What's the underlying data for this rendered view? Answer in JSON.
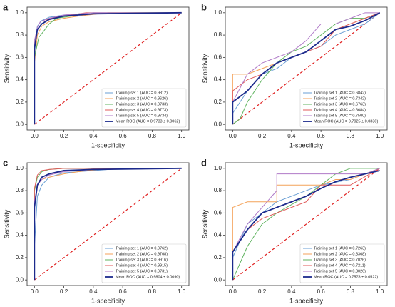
{
  "chart_data": [
    {
      "type": "line",
      "label": "a",
      "xlabel": "1-specificity",
      "ylabel": "Sensitivity",
      "xlim": [
        -0.05,
        1.05
      ],
      "ylim": [
        -0.05,
        1.05
      ],
      "xticks": [
        {
          "value": 0,
          "label": "0.0"
        },
        {
          "value": 0.2,
          "label": "0.2"
        },
        {
          "value": 0.4,
          "label": "0.4"
        },
        {
          "value": 0.6,
          "label": "0.6"
        },
        {
          "value": 0.8,
          "label": "0.8"
        },
        {
          "value": 1,
          "label": "1.0"
        }
      ],
      "yticks": [
        {
          "value": 0,
          "label": "0.0"
        },
        {
          "value": 0.2,
          "label": "0.2"
        },
        {
          "value": 0.4,
          "label": "0.4"
        },
        {
          "value": 0.6,
          "label": "0.6"
        },
        {
          "value": 0.8,
          "label": "0.8"
        },
        {
          "value": 1,
          "label": "1.0"
        }
      ],
      "series": [
        {
          "name": "Training set 1 (AUC = 0.9812)",
          "color": "#6a9fd4",
          "x": [
            0,
            0,
            0.01,
            0.02,
            0.05,
            0.1,
            0.2,
            0.4,
            1
          ],
          "values": [
            0,
            0.6,
            0.8,
            0.88,
            0.93,
            0.96,
            0.98,
            1,
            1
          ]
        },
        {
          "name": "Training set 2 (AUC = 0.9626)",
          "color": "#f4a259",
          "x": [
            0,
            0,
            0.02,
            0.05,
            0.1,
            0.2,
            0.3,
            0.5,
            1
          ],
          "values": [
            0,
            0.55,
            0.8,
            0.88,
            0.92,
            0.95,
            0.97,
            1,
            1
          ]
        },
        {
          "name": "Training set 3 (AUC = 0.9733)",
          "color": "#5fb35f",
          "x": [
            0,
            0,
            0.03,
            0.06,
            0.1,
            0.15,
            0.3,
            0.5,
            1
          ],
          "values": [
            0,
            0.6,
            0.78,
            0.83,
            0.9,
            0.95,
            0.98,
            1,
            1
          ]
        },
        {
          "name": "Training set 4 (AUC = 0.9773)",
          "color": "#e05a5a",
          "x": [
            0,
            0,
            0.02,
            0.05,
            0.1,
            0.2,
            0.35,
            1
          ],
          "values": [
            0,
            0.7,
            0.85,
            0.9,
            0.95,
            0.97,
            1,
            1
          ]
        },
        {
          "name": "Training set 5 (AUC = 0.9734)",
          "color": "#b07ac8",
          "x": [
            0,
            0,
            0.02,
            0.04,
            0.1,
            0.2,
            0.4,
            1
          ],
          "values": [
            0,
            0.75,
            0.87,
            0.92,
            0.95,
            0.98,
            1,
            1
          ]
        },
        {
          "name": "Mean ROC (AUC = 0.9733 ± 0.0062)",
          "color": "#1c2a8c",
          "x": [
            0,
            0,
            0.02,
            0.05,
            0.1,
            0.2,
            0.4,
            1
          ],
          "values": [
            0,
            0.68,
            0.85,
            0.9,
            0.94,
            0.97,
            0.99,
            1
          ]
        }
      ]
    },
    {
      "type": "line",
      "label": "b",
      "xlabel": "1-specificity",
      "ylabel": "Sensitivity",
      "xlim": [
        -0.05,
        1.05
      ],
      "ylim": [
        -0.05,
        1.05
      ],
      "xticks": [
        {
          "value": 0,
          "label": "0.0"
        },
        {
          "value": 0.2,
          "label": "0.2"
        },
        {
          "value": 0.4,
          "label": "0.4"
        },
        {
          "value": 0.6,
          "label": "0.6"
        },
        {
          "value": 0.8,
          "label": "0.8"
        },
        {
          "value": 1,
          "label": "1.0"
        }
      ],
      "yticks": [
        {
          "value": 0,
          "label": "0.0"
        },
        {
          "value": 0.2,
          "label": "0.2"
        },
        {
          "value": 0.4,
          "label": "0.4"
        },
        {
          "value": 0.6,
          "label": "0.6"
        },
        {
          "value": 0.8,
          "label": "0.8"
        },
        {
          "value": 1,
          "label": "1.0"
        }
      ],
      "series": [
        {
          "name": "Training set 1 (AUC = 0.6842)",
          "color": "#6a9fd4",
          "x": [
            0,
            0,
            0.05,
            0.1,
            0.2,
            0.3,
            0.4,
            0.5,
            0.6,
            0.7,
            0.8,
            0.9,
            1
          ],
          "values": [
            0,
            0.1,
            0.2,
            0.3,
            0.45,
            0.5,
            0.6,
            0.65,
            0.7,
            0.8,
            0.85,
            0.9,
            1
          ]
        },
        {
          "name": "Training set 2 (AUC = 0.7342)",
          "color": "#f4a259",
          "x": [
            0,
            0,
            0.1,
            0.2,
            0.3,
            0.4,
            0.5,
            0.6,
            0.7,
            0.8,
            0.9,
            1
          ],
          "values": [
            0,
            0.45,
            0.45,
            0.5,
            0.55,
            0.6,
            0.65,
            0.75,
            0.85,
            0.9,
            0.95,
            1
          ]
        },
        {
          "name": "Training set 3 (AUC = 0.6763)",
          "color": "#5fb35f",
          "x": [
            0,
            0.05,
            0.1,
            0.2,
            0.3,
            0.4,
            0.5,
            0.6,
            0.7,
            0.8,
            0.9,
            1
          ],
          "values": [
            0,
            0.05,
            0.2,
            0.4,
            0.55,
            0.65,
            0.7,
            0.8,
            0.9,
            0.95,
            0.95,
            1
          ]
        },
        {
          "name": "Training set 4 (AUC = 0.6684)",
          "color": "#e05a5a",
          "x": [
            0,
            0,
            0.1,
            0.2,
            0.3,
            0.4,
            0.5,
            0.6,
            0.7,
            0.8,
            0.9,
            1
          ],
          "values": [
            0,
            0.3,
            0.4,
            0.45,
            0.55,
            0.6,
            0.65,
            0.7,
            0.85,
            0.9,
            0.95,
            1
          ]
        },
        {
          "name": "Training set 5 (AUC = 0.7500)",
          "color": "#b07ac8",
          "x": [
            0,
            0,
            0.1,
            0.2,
            0.3,
            0.4,
            0.5,
            0.6,
            0.7,
            0.8,
            0.9,
            1
          ],
          "values": [
            0,
            0.2,
            0.45,
            0.55,
            0.6,
            0.65,
            0.75,
            0.9,
            0.9,
            0.95,
            1,
            1
          ]
        },
        {
          "name": "Mean ROC (AUC = 0.7025 ± 0.0330)",
          "color": "#1c2a8c",
          "x": [
            0,
            0,
            0.1,
            0.2,
            0.3,
            0.4,
            0.5,
            0.6,
            0.7,
            0.8,
            0.9,
            1
          ],
          "values": [
            0,
            0.2,
            0.3,
            0.45,
            0.55,
            0.6,
            0.65,
            0.75,
            0.85,
            0.88,
            0.93,
            1
          ]
        }
      ]
    },
    {
      "type": "line",
      "label": "c",
      "xlabel": "1-specificity",
      "ylabel": "Sensitivity",
      "xlim": [
        -0.05,
        1.05
      ],
      "ylim": [
        -0.05,
        1.05
      ],
      "xticks": [
        {
          "value": 0,
          "label": "0.0"
        },
        {
          "value": 0.2,
          "label": "0.2"
        },
        {
          "value": 0.4,
          "label": "0.4"
        },
        {
          "value": 0.6,
          "label": "0.6"
        },
        {
          "value": 0.8,
          "label": "0.8"
        },
        {
          "value": 1,
          "label": "1.0"
        }
      ],
      "yticks": [
        {
          "value": 0,
          "label": "0.0"
        },
        {
          "value": 0.2,
          "label": "0.2"
        },
        {
          "value": 0.4,
          "label": "0.4"
        },
        {
          "value": 0.6,
          "label": "0.6"
        },
        {
          "value": 0.8,
          "label": "0.8"
        },
        {
          "value": 1,
          "label": "1.0"
        }
      ],
      "series": [
        {
          "name": "Training set 1 (AUC = 0.9762)",
          "color": "#6a9fd4",
          "x": [
            0,
            0,
            0.02,
            0.05,
            0.1,
            0.2,
            0.4,
            0.6,
            1
          ],
          "values": [
            0,
            0.3,
            0.75,
            0.85,
            0.92,
            0.96,
            0.98,
            1,
            1
          ]
        },
        {
          "name": "Training set 2 (AUC = 0.9708)",
          "color": "#f4a259",
          "x": [
            0,
            0,
            0.02,
            0.05,
            0.1,
            0.2,
            0.3,
            0.5,
            1
          ],
          "values": [
            0,
            0.65,
            0.85,
            0.9,
            0.92,
            0.95,
            0.97,
            1,
            1
          ]
        },
        {
          "name": "Training set 3 (AUC = 0.9916)",
          "color": "#5fb35f",
          "x": [
            0,
            0,
            0.02,
            0.05,
            0.1,
            0.2,
            1
          ],
          "values": [
            0,
            0.8,
            0.92,
            0.97,
            0.99,
            1,
            1
          ]
        },
        {
          "name": "Training set 4 (AUC = 0.9915)",
          "color": "#e05a5a",
          "x": [
            0,
            0,
            0.02,
            0.05,
            0.1,
            0.2,
            1
          ],
          "values": [
            0,
            0.82,
            0.94,
            0.98,
            0.99,
            1,
            1
          ]
        },
        {
          "name": "Training set 5 (AUC = 0.9731)",
          "color": "#b07ac8",
          "x": [
            0,
            0,
            0.02,
            0.05,
            0.1,
            0.2,
            0.4,
            1
          ],
          "values": [
            0,
            0.7,
            0.85,
            0.9,
            0.94,
            0.97,
            0.99,
            1
          ]
        },
        {
          "name": "Mean ROC (AUC = 0.9804 ± 0.0090)",
          "color": "#1c2a8c",
          "x": [
            0,
            0,
            0.02,
            0.05,
            0.1,
            0.2,
            0.4,
            1
          ],
          "values": [
            0,
            0.65,
            0.85,
            0.92,
            0.95,
            0.98,
            0.99,
            1
          ]
        }
      ]
    },
    {
      "type": "line",
      "label": "d",
      "xlabel": "1-specificity",
      "ylabel": "Sensitivity",
      "xlim": [
        -0.05,
        1.05
      ],
      "ylim": [
        -0.05,
        1.05
      ],
      "xticks": [
        {
          "value": 0,
          "label": "0.0"
        },
        {
          "value": 0.2,
          "label": "0.2"
        },
        {
          "value": 0.4,
          "label": "0.4"
        },
        {
          "value": 0.6,
          "label": "0.6"
        },
        {
          "value": 0.8,
          "label": "0.8"
        },
        {
          "value": 1,
          "label": "1.0"
        }
      ],
      "yticks": [
        {
          "value": 0,
          "label": "0.0"
        },
        {
          "value": 0.2,
          "label": "0.2"
        },
        {
          "value": 0.4,
          "label": "0.4"
        },
        {
          "value": 0.6,
          "label": "0.6"
        },
        {
          "value": 0.8,
          "label": "0.8"
        },
        {
          "value": 1,
          "label": "1.0"
        }
      ],
      "series": [
        {
          "name": "Training set 1 (AUC = 0.7263)",
          "color": "#6a9fd4",
          "x": [
            0,
            0,
            0.05,
            0.1,
            0.2,
            0.3,
            0.4,
            0.5,
            0.6,
            0.8,
            1
          ],
          "values": [
            0,
            0.2,
            0.35,
            0.5,
            0.6,
            0.7,
            0.75,
            0.8,
            0.85,
            0.9,
            1
          ]
        },
        {
          "name": "Training set 2 (AUC = 0.8368)",
          "color": "#f4a259",
          "x": [
            0,
            0,
            0.1,
            0.3,
            0.3,
            0.6,
            0.7,
            0.8,
            1
          ],
          "values": [
            0,
            0.65,
            0.7,
            0.7,
            0.85,
            0.85,
            0.9,
            0.9,
            1
          ]
        },
        {
          "name": "Training set 3 (AUC = 0.7026)",
          "color": "#5fb35f",
          "x": [
            0,
            0.1,
            0.2,
            0.3,
            0.5,
            0.6,
            0.7,
            0.8,
            1
          ],
          "values": [
            0,
            0.3,
            0.5,
            0.6,
            0.75,
            0.85,
            0.95,
            1,
            1
          ]
        },
        {
          "name": "Training set 4 (AUC = 0.7211)",
          "color": "#e05a5a",
          "x": [
            0,
            0,
            0.1,
            0.2,
            0.3,
            0.5,
            0.6,
            0.8,
            1
          ],
          "values": [
            0,
            0.25,
            0.45,
            0.55,
            0.6,
            0.7,
            0.85,
            0.85,
            1
          ]
        },
        {
          "name": "Training set 5 (AUC = 0.8026)",
          "color": "#b07ac8",
          "x": [
            0,
            0,
            0.1,
            0.2,
            0.3,
            0.3,
            0.9,
            1
          ],
          "values": [
            0,
            0.25,
            0.5,
            0.65,
            0.8,
            0.95,
            0.95,
            1
          ]
        },
        {
          "name": "Mean ROC (AUC = 0.7578 ± 0.0522)",
          "color": "#1c2a8c",
          "x": [
            0,
            0,
            0.1,
            0.2,
            0.3,
            0.4,
            0.5,
            0.6,
            0.7,
            0.8,
            0.9,
            1
          ],
          "values": [
            0,
            0.25,
            0.45,
            0.6,
            0.65,
            0.7,
            0.75,
            0.82,
            0.88,
            0.92,
            0.95,
            0.98
          ]
        }
      ]
    }
  ]
}
